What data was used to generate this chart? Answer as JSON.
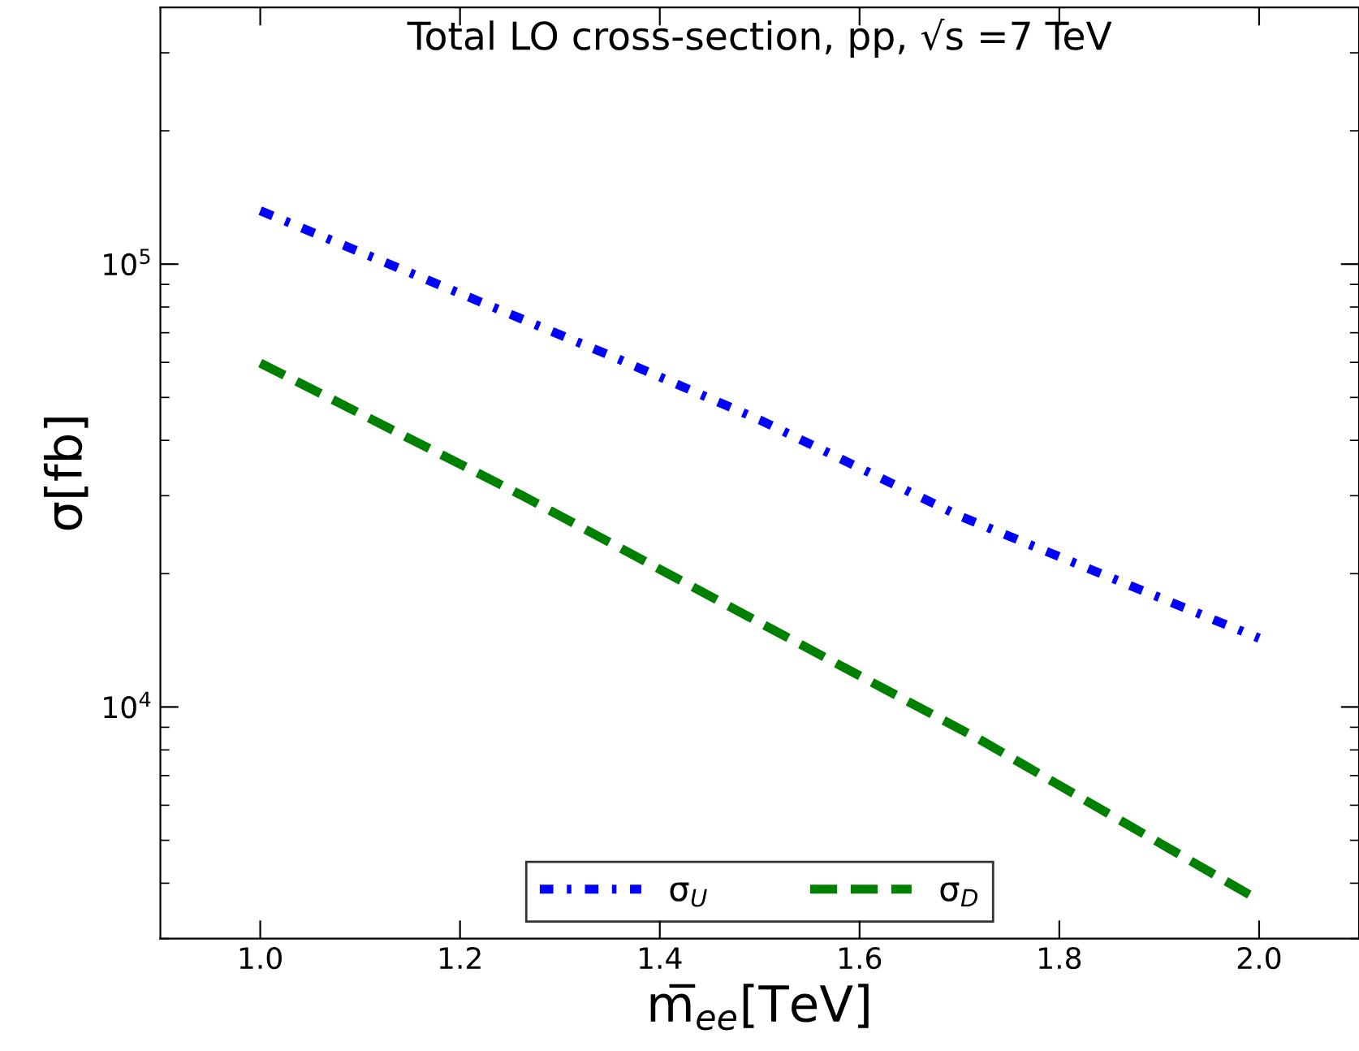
{
  "chart_data": {
    "type": "line",
    "title": "Total LO cross-section, pp, √s =7 TeV",
    "xlabel": "m̅$_{ee}$[TeV]",
    "ylabel": "σ[fb]",
    "log": "y",
    "xlim": [
      0.9,
      2.1
    ],
    "xticks": [
      {
        "value": 1.0,
        "label": "1.0"
      },
      1.2,
      1.4,
      1.6,
      1.8,
      {
        "value": 2.0,
        "label": "2.0"
      }
    ],
    "ylim": [
      3000,
      380000
    ],
    "yticks": [
      {
        "value": 10000,
        "label": "10$^{4}$"
      },
      {
        "value": 100000,
        "label": "10$^{5}$"
      }
    ],
    "legend": "bottom",
    "grid": false,
    "series": [
      {
        "name": "σ$_{U}$",
        "color": "#0000ff",
        "line_style": "dashdot",
        "x": [
          1.0,
          1.353,
          1.5,
          1.7,
          2.0
        ],
        "values": [
          132000,
          61800,
          44500,
          27000,
          14300
        ]
      },
      {
        "name": "σ$_{D}$",
        "color": "#008000",
        "line_style": "dashed",
        "x": [
          1.0,
          1.26,
          1.5,
          1.72,
          2.0
        ],
        "values": [
          59800,
          30200,
          15500,
          8450,
          3660
        ]
      }
    ]
  }
}
